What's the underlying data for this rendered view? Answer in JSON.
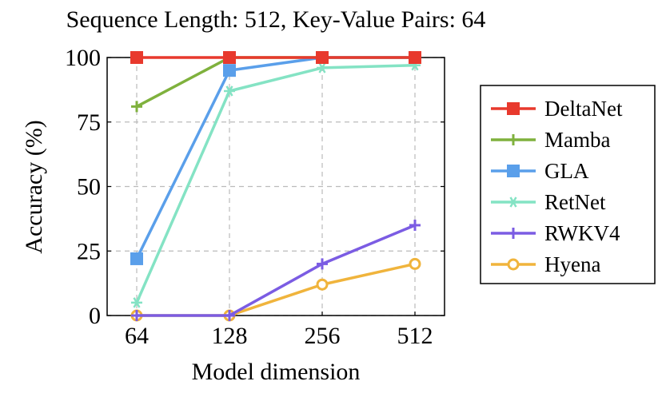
{
  "chart_data": {
    "type": "line",
    "title": "Sequence Length: 512, Key-Value Pairs: 64",
    "xlabel": "Model dimension",
    "ylabel": "Accuracy (%)",
    "categories": [
      "64",
      "128",
      "256",
      "512"
    ],
    "ylim": [
      0,
      100
    ],
    "yticks": [
      "0",
      "25",
      "50",
      "75",
      "100"
    ],
    "grid": true,
    "legend_position": "right",
    "series": [
      {
        "name": "DeltaNet",
        "values": [
          100,
          100,
          100,
          100
        ],
        "color": "#e8392d",
        "marker": "square"
      },
      {
        "name": "Mamba",
        "values": [
          81,
          100,
          100,
          100
        ],
        "color": "#7fb13d",
        "marker": "plus"
      },
      {
        "name": "GLA",
        "values": [
          22,
          95,
          100,
          100
        ],
        "color": "#5a9fea",
        "marker": "square"
      },
      {
        "name": "RetNet",
        "values": [
          5,
          87,
          96,
          97
        ],
        "color": "#84e3c4",
        "marker": "asterisk"
      },
      {
        "name": "RWKV4",
        "values": [
          0,
          0,
          20,
          35
        ],
        "color": "#7b5ce3",
        "marker": "plus"
      },
      {
        "name": "Hyena",
        "values": [
          0,
          0,
          12,
          20
        ],
        "color": "#f0b43c",
        "marker": "circle"
      }
    ]
  }
}
